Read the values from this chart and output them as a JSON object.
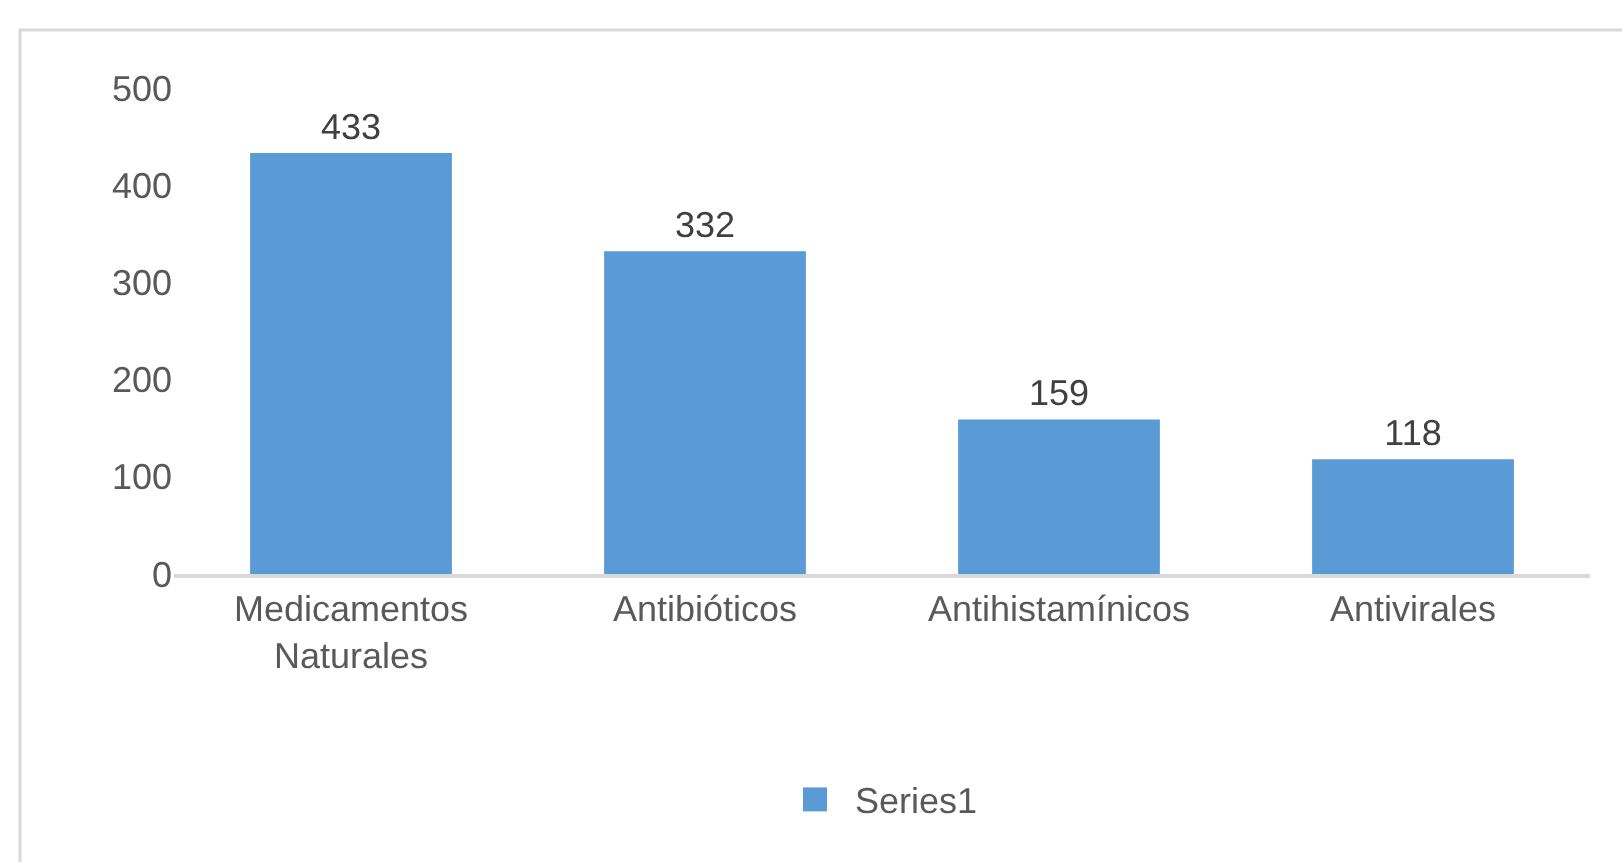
{
  "chart_data": {
    "type": "bar",
    "categories": [
      "Medicamentos Naturales",
      "Antibióticos",
      "Antihistamínicos",
      "Antivirales"
    ],
    "series": [
      {
        "name": "Series1",
        "color": "#5b9bd5",
        "values": [
          433,
          332,
          159,
          118
        ]
      }
    ],
    "ylim": [
      0,
      500
    ],
    "yticks": [
      0,
      100,
      200,
      300,
      400,
      500
    ],
    "grid": false,
    "legend": "bottom",
    "data_labels": true
  }
}
